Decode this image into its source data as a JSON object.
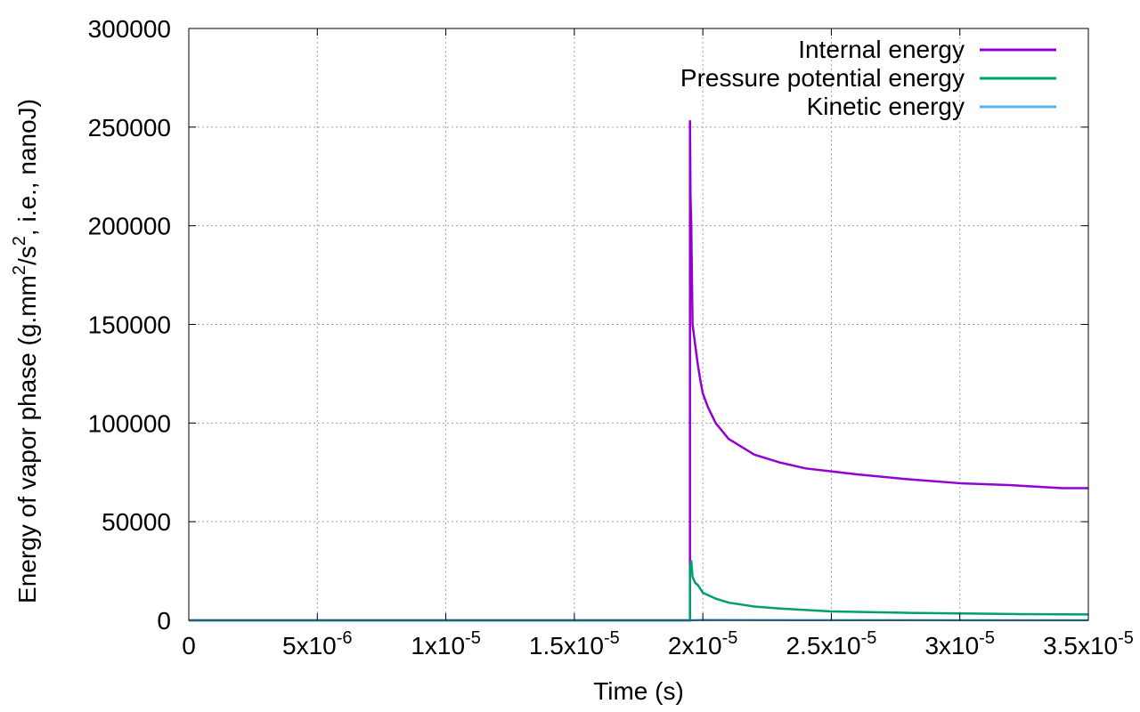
{
  "chart_data": {
    "type": "line",
    "title": "",
    "xlabel": "Time (s)",
    "ylabel": "Energy of vapor phase (g.mm2/s2, i.e., nanoJ)",
    "ylabel_parts": [
      "Energy of vapor phase (g.mm",
      "2",
      "/s",
      "2",
      ", i.e., nanoJ)"
    ],
    "xlim": [
      0,
      3.5e-05
    ],
    "ylim": [
      0,
      300000
    ],
    "grid": true,
    "legend_position": "top-right",
    "x_ticks": [
      {
        "value": 0,
        "base": "0",
        "exp": ""
      },
      {
        "value": 5e-06,
        "base": "5x10",
        "exp": "-6"
      },
      {
        "value": 1e-05,
        "base": "1x10",
        "exp": "-5"
      },
      {
        "value": 1.5e-05,
        "base": "1.5x10",
        "exp": "-5"
      },
      {
        "value": 2e-05,
        "base": "2x10",
        "exp": "-5"
      },
      {
        "value": 2.5e-05,
        "base": "2.5x10",
        "exp": "-5"
      },
      {
        "value": 3e-05,
        "base": "3x10",
        "exp": "-5"
      },
      {
        "value": 3.5e-05,
        "base": "3.5x10",
        "exp": "-5"
      }
    ],
    "y_ticks": [
      {
        "value": 0,
        "label": "0"
      },
      {
        "value": 50000,
        "label": "50000"
      },
      {
        "value": 100000,
        "label": "100000"
      },
      {
        "value": 150000,
        "label": "150000"
      },
      {
        "value": 200000,
        "label": "200000"
      },
      {
        "value": 250000,
        "label": "250000"
      },
      {
        "value": 300000,
        "label": "300000"
      }
    ],
    "series": [
      {
        "name": "Internal energy",
        "color": "#9400d3",
        "x": [
          0,
          1.95e-05,
          1.95e-05,
          1.952e-05,
          1.955e-05,
          1.96e-05,
          1.97e-05,
          1.98e-05,
          1.99e-05,
          2e-05,
          2.02e-05,
          2.05e-05,
          2.1e-05,
          2.2e-05,
          2.3e-05,
          2.4e-05,
          2.5e-05,
          2.6e-05,
          2.8e-05,
          3e-05,
          3.2e-05,
          3.4e-05,
          3.5e-05
        ],
        "y": [
          0,
          0,
          253000,
          215000,
          200000,
          150000,
          140000,
          130000,
          122000,
          115000,
          108000,
          100000,
          92000,
          84000,
          80000,
          77000,
          75500,
          74000,
          71500,
          69500,
          68500,
          67000,
          67000
        ]
      },
      {
        "name": "Pressure potential energy",
        "color": "#009e73",
        "x": [
          0,
          1.95e-05,
          1.95e-05,
          1.955e-05,
          1.96e-05,
          1.97e-05,
          1.98e-05,
          1.99e-05,
          2e-05,
          2.05e-05,
          2.1e-05,
          2.2e-05,
          2.3e-05,
          2.5e-05,
          2.8e-05,
          3e-05,
          3.2e-05,
          3.5e-05
        ],
        "y": [
          0,
          0,
          27000,
          30000,
          22000,
          19000,
          18000,
          16000,
          14000,
          11000,
          9000,
          7000,
          6000,
          4500,
          3800,
          3500,
          3200,
          3000
        ]
      },
      {
        "name": "Kinetic energy",
        "color": "#56b4e9",
        "x": [
          0,
          1.95e-05,
          2e-05,
          2.5e-05,
          3e-05,
          3.5e-05
        ],
        "y": [
          0,
          0,
          200,
          100,
          80,
          60
        ]
      }
    ]
  }
}
